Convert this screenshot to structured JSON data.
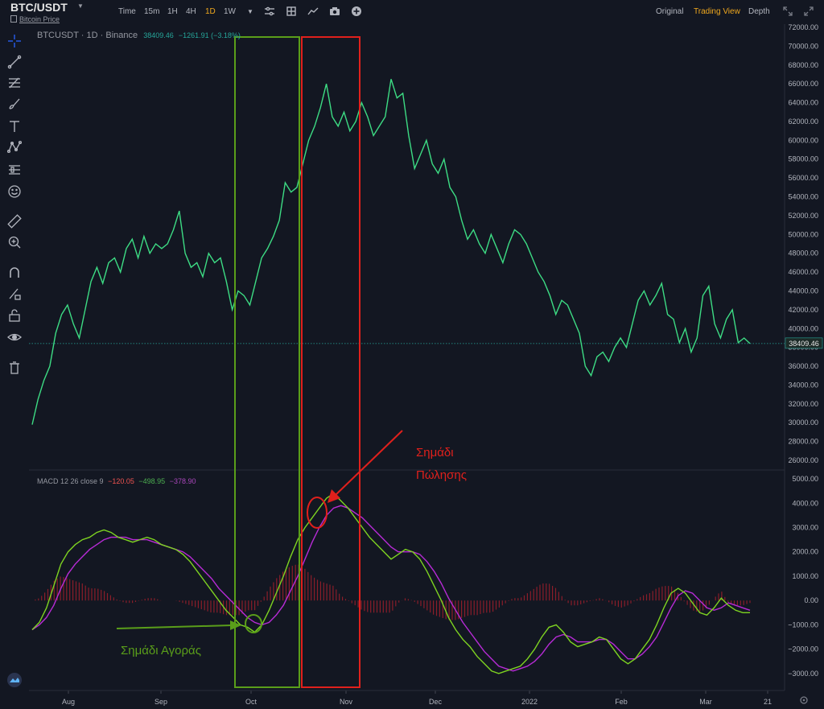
{
  "header": {
    "symbol": "BTC/USDT",
    "subtitle": "Bitcoin Price",
    "intervals": [
      "Time",
      "15m",
      "1H",
      "4H",
      "1D",
      "1W"
    ],
    "active_interval": "1D",
    "views": [
      "Original",
      "Trading View",
      "Depth"
    ],
    "active_view": "Trading View"
  },
  "price_pane": {
    "symbol": "BTCUSDT",
    "interval": "1D",
    "exchange": "Binance",
    "last": "38409.46",
    "change": "−1261.91 (−3.18%)",
    "last_label": "38409.46"
  },
  "macd_pane": {
    "label": "MACD 12 26 close 9",
    "histogram": "−120.05",
    "macd": "−498.95",
    "signal": "−378.90"
  },
  "annotations": {
    "sell_line1": "Σημάδι",
    "sell_line2": "Πώλησης",
    "buy": "Σημάδι Αγοράς"
  },
  "colors": {
    "background": "#131722",
    "price_line": "#3ddc84",
    "macd_line": "#7ed321",
    "signal_line": "#b72bd6",
    "histogram": "#8b1e2a",
    "buy_box": "#5a9e1a",
    "sell_box": "#e0201c"
  },
  "chart_data": [
    {
      "type": "line",
      "name_visible": "BTCUSDT, 1D, Binance",
      "x_ticks": [
        "Aug",
        "Sep",
        "Oct",
        "Nov",
        "Dec",
        "2022",
        "Feb",
        "Mar",
        "21"
      ],
      "y_ticks": [
        26000,
        28000,
        30000,
        32000,
        34000,
        36000,
        38000,
        40000,
        42000,
        44000,
        46000,
        48000,
        50000,
        52000,
        54000,
        56000,
        58000,
        60000,
        62000,
        64000,
        66000,
        68000,
        70000,
        72000
      ],
      "ylim": [
        26000,
        72000
      ],
      "last_value": 38409.46,
      "series": [
        {
          "values": [
            29800,
            32500,
            34500,
            36000,
            39500,
            41500,
            42500,
            40500,
            39000,
            42000,
            45000,
            46500,
            44800,
            47000,
            47500,
            46000,
            48500,
            49500,
            47500,
            49800,
            48000,
            49000,
            48500,
            49000,
            50500,
            52500,
            48000,
            46500,
            47000,
            45500,
            48000,
            47000,
            47500,
            45000,
            42000,
            44000,
            43500,
            42500,
            45000,
            47500,
            48500,
            49800,
            51500,
            55500,
            54500,
            55000,
            57500,
            60000,
            61500,
            63500,
            66000,
            62500,
            61500,
            63000,
            61000,
            62000,
            64000,
            62500,
            60500,
            61500,
            62500,
            66500,
            64500,
            65000,
            60500,
            57000,
            58500,
            60000,
            57500,
            56500,
            58000,
            55000,
            54000,
            51500,
            49500,
            50500,
            49000,
            48000,
            50000,
            48500,
            47000,
            49000,
            50500,
            50000,
            49000,
            47500,
            46000,
            45000,
            43500,
            41500,
            43000,
            42500,
            41000,
            39500,
            36000,
            35000,
            37000,
            37500,
            36500,
            38000,
            39000,
            38000,
            40500,
            43000,
            44000,
            42500,
            43500,
            44800,
            41500,
            41000,
            38500,
            40000,
            37500,
            39000,
            43500,
            44500,
            40500,
            39000,
            41000,
            42000,
            38500,
            39000,
            38409
          ]
        }
      ]
    },
    {
      "type": "line",
      "name_visible": "MACD 12 26 close 9",
      "y_ticks": [
        -3000,
        -2000,
        -1000,
        0,
        1000,
        2000,
        3000,
        4000,
        5000
      ],
      "ylim": [
        -3600,
        5300
      ],
      "series": [
        {
          "name": "MACD",
          "values": [
            -1200,
            -900,
            -300,
            600,
            1500,
            2000,
            2300,
            2500,
            2600,
            2800,
            2900,
            2800,
            2600,
            2500,
            2400,
            2500,
            2600,
            2500,
            2300,
            2200,
            2100,
            1900,
            1600,
            1200,
            800,
            400,
            0,
            -400,
            -700,
            -1000,
            -1100,
            -1300,
            -1000,
            -400,
            300,
            1000,
            1800,
            2500,
            3000,
            3400,
            3800,
            4200,
            4400,
            4100,
            3800,
            3400,
            3000,
            2600,
            2300,
            2000,
            1700,
            1900,
            2100,
            2000,
            1700,
            1200,
            600,
            0,
            -700,
            -1200,
            -1600,
            -1900,
            -2300,
            -2600,
            -2900,
            -3000,
            -2900,
            -2800,
            -2700,
            -2400,
            -2000,
            -1500,
            -1100,
            -1000,
            -1300,
            -1700,
            -1900,
            -1800,
            -1700,
            -1500,
            -1600,
            -2000,
            -2400,
            -2600,
            -2400,
            -2000,
            -1600,
            -1000,
            -300,
            300,
            500,
            300,
            -100,
            -500,
            -600,
            -300,
            100,
            -200,
            -400,
            -500,
            -500
          ]
        },
        {
          "name": "Signal",
          "values": [
            -1200,
            -1000,
            -700,
            -200,
            500,
            1100,
            1500,
            1800,
            2100,
            2300,
            2500,
            2600,
            2600,
            2600,
            2500,
            2500,
            2500,
            2400,
            2300,
            2200,
            2100,
            2000,
            1800,
            1500,
            1200,
            900,
            500,
            200,
            -100,
            -400,
            -700,
            -900,
            -1000,
            -900,
            -600,
            -200,
            400,
            1000,
            1700,
            2400,
            3000,
            3500,
            3800,
            3900,
            3800,
            3600,
            3400,
            3100,
            2800,
            2500,
            2200,
            2000,
            2000,
            2000,
            1900,
            1600,
            1200,
            700,
            100,
            -400,
            -900,
            -1300,
            -1700,
            -2100,
            -2400,
            -2700,
            -2800,
            -2900,
            -2800,
            -2700,
            -2500,
            -2200,
            -1800,
            -1500,
            -1400,
            -1500,
            -1700,
            -1700,
            -1700,
            -1600,
            -1600,
            -1800,
            -2100,
            -2400,
            -2400,
            -2200,
            -1900,
            -1500,
            -900,
            -300,
            200,
            400,
            300,
            0,
            -300,
            -400,
            -300,
            -100,
            -200,
            -300,
            -400
          ]
        }
      ],
      "histogram_note": "red histogram bars around zero"
    }
  ]
}
